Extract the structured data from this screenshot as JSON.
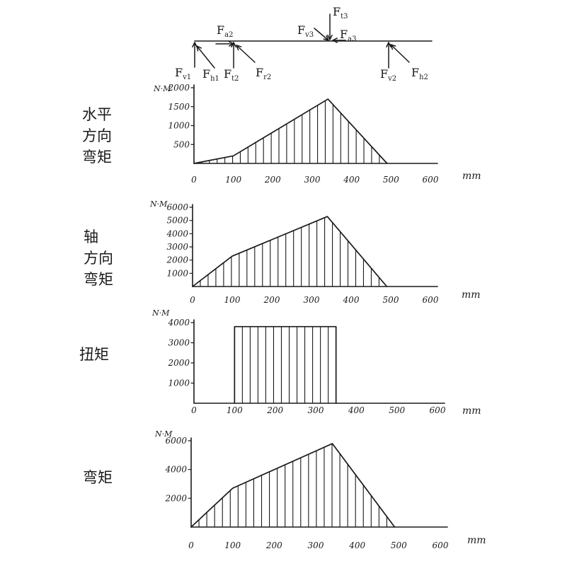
{
  "beam": {
    "force_labels": [
      "Fv1",
      "Fh1",
      "Ft2",
      "Fr2",
      "Fa2",
      "Fv3",
      "Ft3",
      "Fa3",
      "Fv2",
      "Fh2"
    ],
    "forces": [
      {
        "main": "F",
        "sub": "v1"
      },
      {
        "main": "F",
        "sub": "h1"
      },
      {
        "main": "F",
        "sub": "t2"
      },
      {
        "main": "F",
        "sub": "r2"
      },
      {
        "main": "F",
        "sub": "a2"
      },
      {
        "main": "F",
        "sub": "v3"
      },
      {
        "main": "F",
        "sub": "t3"
      },
      {
        "main": "F",
        "sub": "a3"
      },
      {
        "main": "F",
        "sub": "v2"
      },
      {
        "main": "F",
        "sub": "h2"
      }
    ]
  },
  "chart_data": [
    {
      "type": "area",
      "row_label": "水平\n方向\n弯矩",
      "ylabel": "N·M",
      "xunit": "mm",
      "x": [
        0,
        100,
        340,
        490
      ],
      "y": [
        0,
        200,
        1700,
        0
      ],
      "xlim": [
        0,
        600
      ],
      "ylim": [
        0,
        2000
      ],
      "xticks": [
        "0",
        "100",
        "200",
        "300",
        "400",
        "500",
        "600"
      ],
      "yticks": [
        "500",
        "1000",
        "1500",
        "2000"
      ],
      "hatch": "vertical"
    },
    {
      "type": "area",
      "row_label": "轴\n方向\n弯矩",
      "ylabel": "N·M",
      "xunit": "mm",
      "x": [
        0,
        100,
        340,
        490
      ],
      "y": [
        0,
        2300,
        5300,
        0
      ],
      "xlim": [
        0,
        600
      ],
      "ylim": [
        0,
        6000
      ],
      "xticks": [
        "0",
        "100",
        "200",
        "300",
        "400",
        "500",
        "600"
      ],
      "yticks": [
        "1000",
        "2000",
        "3000",
        "4000",
        "5000",
        "6000"
      ],
      "hatch": "vertical"
    },
    {
      "type": "area",
      "row_label": "扭矩",
      "ylabel": "N·M",
      "xunit": "mm",
      "x": [
        100,
        100,
        350,
        350
      ],
      "y": [
        0,
        3800,
        3800,
        0
      ],
      "xlim": [
        0,
        600
      ],
      "ylim": [
        0,
        4000
      ],
      "xticks": [
        "0",
        "100",
        "200",
        "300",
        "400",
        "500",
        "600"
      ],
      "yticks": [
        "1000",
        "2000",
        "3000",
        "4000"
      ],
      "hatch": "vertical"
    },
    {
      "type": "area",
      "row_label": "弯矩",
      "ylabel": "N·M",
      "xunit": "mm",
      "x": [
        0,
        100,
        340,
        490
      ],
      "y": [
        0,
        2700,
        5800,
        0
      ],
      "xlim": [
        0,
        600
      ],
      "ylim": [
        0,
        6000
      ],
      "xticks": [
        "0",
        "100",
        "200",
        "300",
        "400",
        "500",
        "600"
      ],
      "yticks": [
        "2000",
        "4000",
        "6000"
      ],
      "hatch": "vertical"
    }
  ]
}
